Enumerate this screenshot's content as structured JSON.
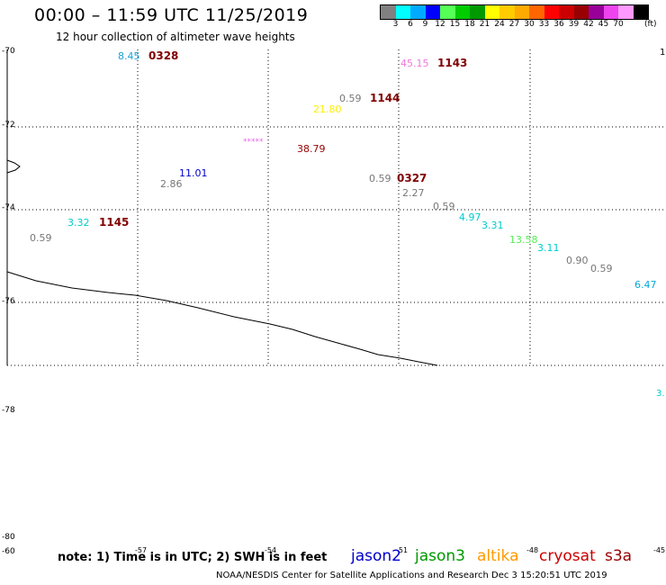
{
  "title": "00:00 – 11:59 UTC 11/25/2019",
  "subtitle": "12 hour collection of altimeter wave heights",
  "colorbar": {
    "colors": [
      "#808080",
      "#00ffff",
      "#00aaff",
      "#0000ff",
      "#55ff55",
      "#00cc00",
      "#009900",
      "#ffff00",
      "#ffcc00",
      "#ffaa00",
      "#ff6600",
      "#ff0000",
      "#cc0000",
      "#990000",
      "#990099",
      "#ee44ee",
      "#ff99ff",
      "#000000"
    ],
    "labels": [
      "3",
      "6",
      "9",
      "12",
      "15",
      "18",
      "21",
      "24",
      "27",
      "30",
      "33",
      "36",
      "39",
      "42",
      "45",
      "70"
    ],
    "unit": "(ft)"
  },
  "lat_labels": [
    "-70",
    "-72",
    "-74",
    "-76",
    "-78",
    "-80",
    "-60"
  ],
  "lon_labels": [
    "-57",
    "-54",
    "-51",
    "-48",
    "-45"
  ],
  "edge_labels": [
    "1.",
    "3."
  ],
  "observations": [
    {
      "text": "8.45",
      "color": "#1aa0d8"
    },
    {
      "text": "45.15",
      "color": "#ee77dd"
    },
    {
      "text": "0.59",
      "color": "#777777"
    },
    {
      "text": "21.80",
      "color": "#ffee00"
    },
    {
      "text": "*****",
      "color": "#ee66ee"
    },
    {
      "text": "38.79",
      "color": "#990000"
    },
    {
      "text": "11.01",
      "color": "#0000cc"
    },
    {
      "text": "2.86",
      "color": "#777777"
    },
    {
      "text": "0.59",
      "color": "#777777"
    },
    {
      "text": "2.27",
      "color": "#777777"
    },
    {
      "text": "0.59",
      "color": "#777777"
    },
    {
      "text": "4.97",
      "color": "#00cccc"
    },
    {
      "text": "3.31",
      "color": "#00cccc"
    },
    {
      "text": "13.58",
      "color": "#55ee55"
    },
    {
      "text": "3.11",
      "color": "#00cccc"
    },
    {
      "text": "0.90",
      "color": "#777777"
    },
    {
      "text": "0.59",
      "color": "#777777"
    },
    {
      "text": "6.47",
      "color": "#00aadd"
    },
    {
      "text": "3.32",
      "color": "#00cccc"
    },
    {
      "text": "0.59",
      "color": "#777777"
    }
  ],
  "times": [
    "0328",
    "1143",
    "1144",
    "0327",
    "1145"
  ],
  "time_color": "#800000",
  "note": "note: 1) Time is in UTC; 2) SWH is in feet",
  "legend": [
    {
      "name": "jason2",
      "color": "#0000cc"
    },
    {
      "name": "jason3",
      "color": "#009900"
    },
    {
      "name": "altika",
      "color": "#ff9900"
    },
    {
      "name": "cryosat",
      "color": "#cc0000"
    },
    {
      "name": "s3a",
      "color": "#990000"
    }
  ],
  "footer": "NOAA/NESDIS Center for Satellite Applications and Research    Dec  3 15:20:51 UTC 2019"
}
